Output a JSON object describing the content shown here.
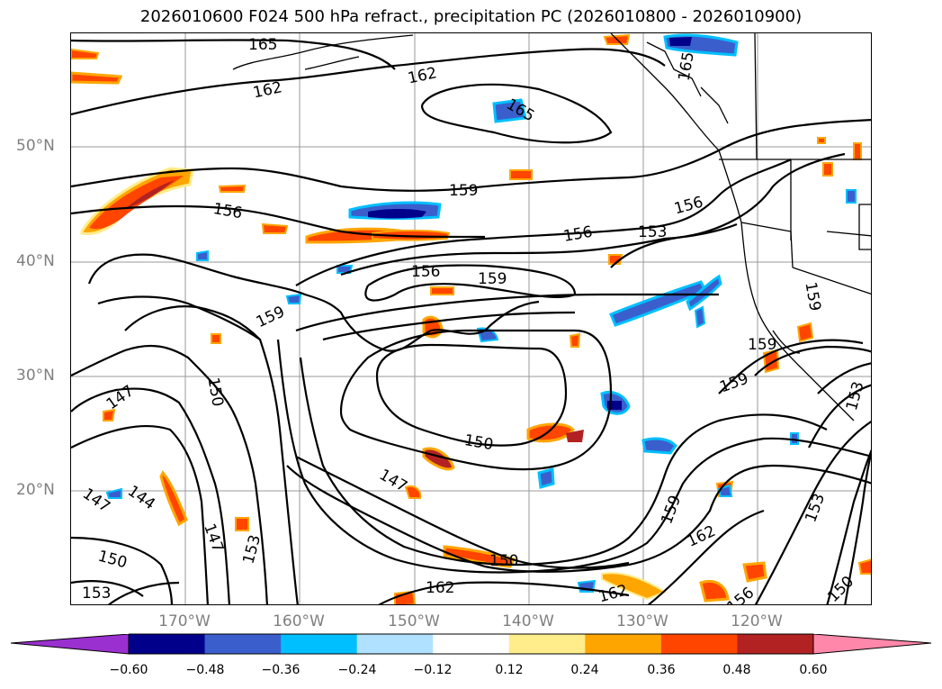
{
  "title": "2026010600 F024 500 hPa refract., precipitation PC (2026010800 - 2026010900)",
  "lat_labels": [
    "50°N",
    "40°N",
    "30°N",
    "20°N"
  ],
  "lon_labels": [
    "170°W",
    "160°W",
    "150°W",
    "140°W",
    "130°W",
    "120°W"
  ],
  "contour_labels": [
    "165",
    "162",
    "162",
    "165",
    "165",
    "159",
    "156",
    "156",
    "156",
    "153",
    "156",
    "159",
    "159",
    "159",
    "159",
    "147",
    "150",
    "150",
    "147",
    "144",
    "147",
    "150",
    "153",
    "153",
    "147",
    "150",
    "162",
    "159",
    "162",
    "162",
    "156",
    "153",
    "150",
    "153",
    "159"
  ],
  "colorbar": {
    "ticks": [
      "−0.60",
      "−0.48",
      "−0.36",
      "−0.24",
      "−0.12",
      "0.12",
      "0.24",
      "0.36",
      "0.48",
      "0.60"
    ],
    "colors": [
      "#9b30d0",
      "#00008b",
      "#3a5fcd",
      "#00bfff",
      "#b0e2ff",
      "#ffffff",
      "#ffec8b",
      "#ffa500",
      "#ff4500",
      "#b22222",
      "#ff88aa"
    ]
  },
  "colors": {
    "axis_label": "#7f7f7f",
    "contour": "#000000",
    "coast": "#000000"
  }
}
